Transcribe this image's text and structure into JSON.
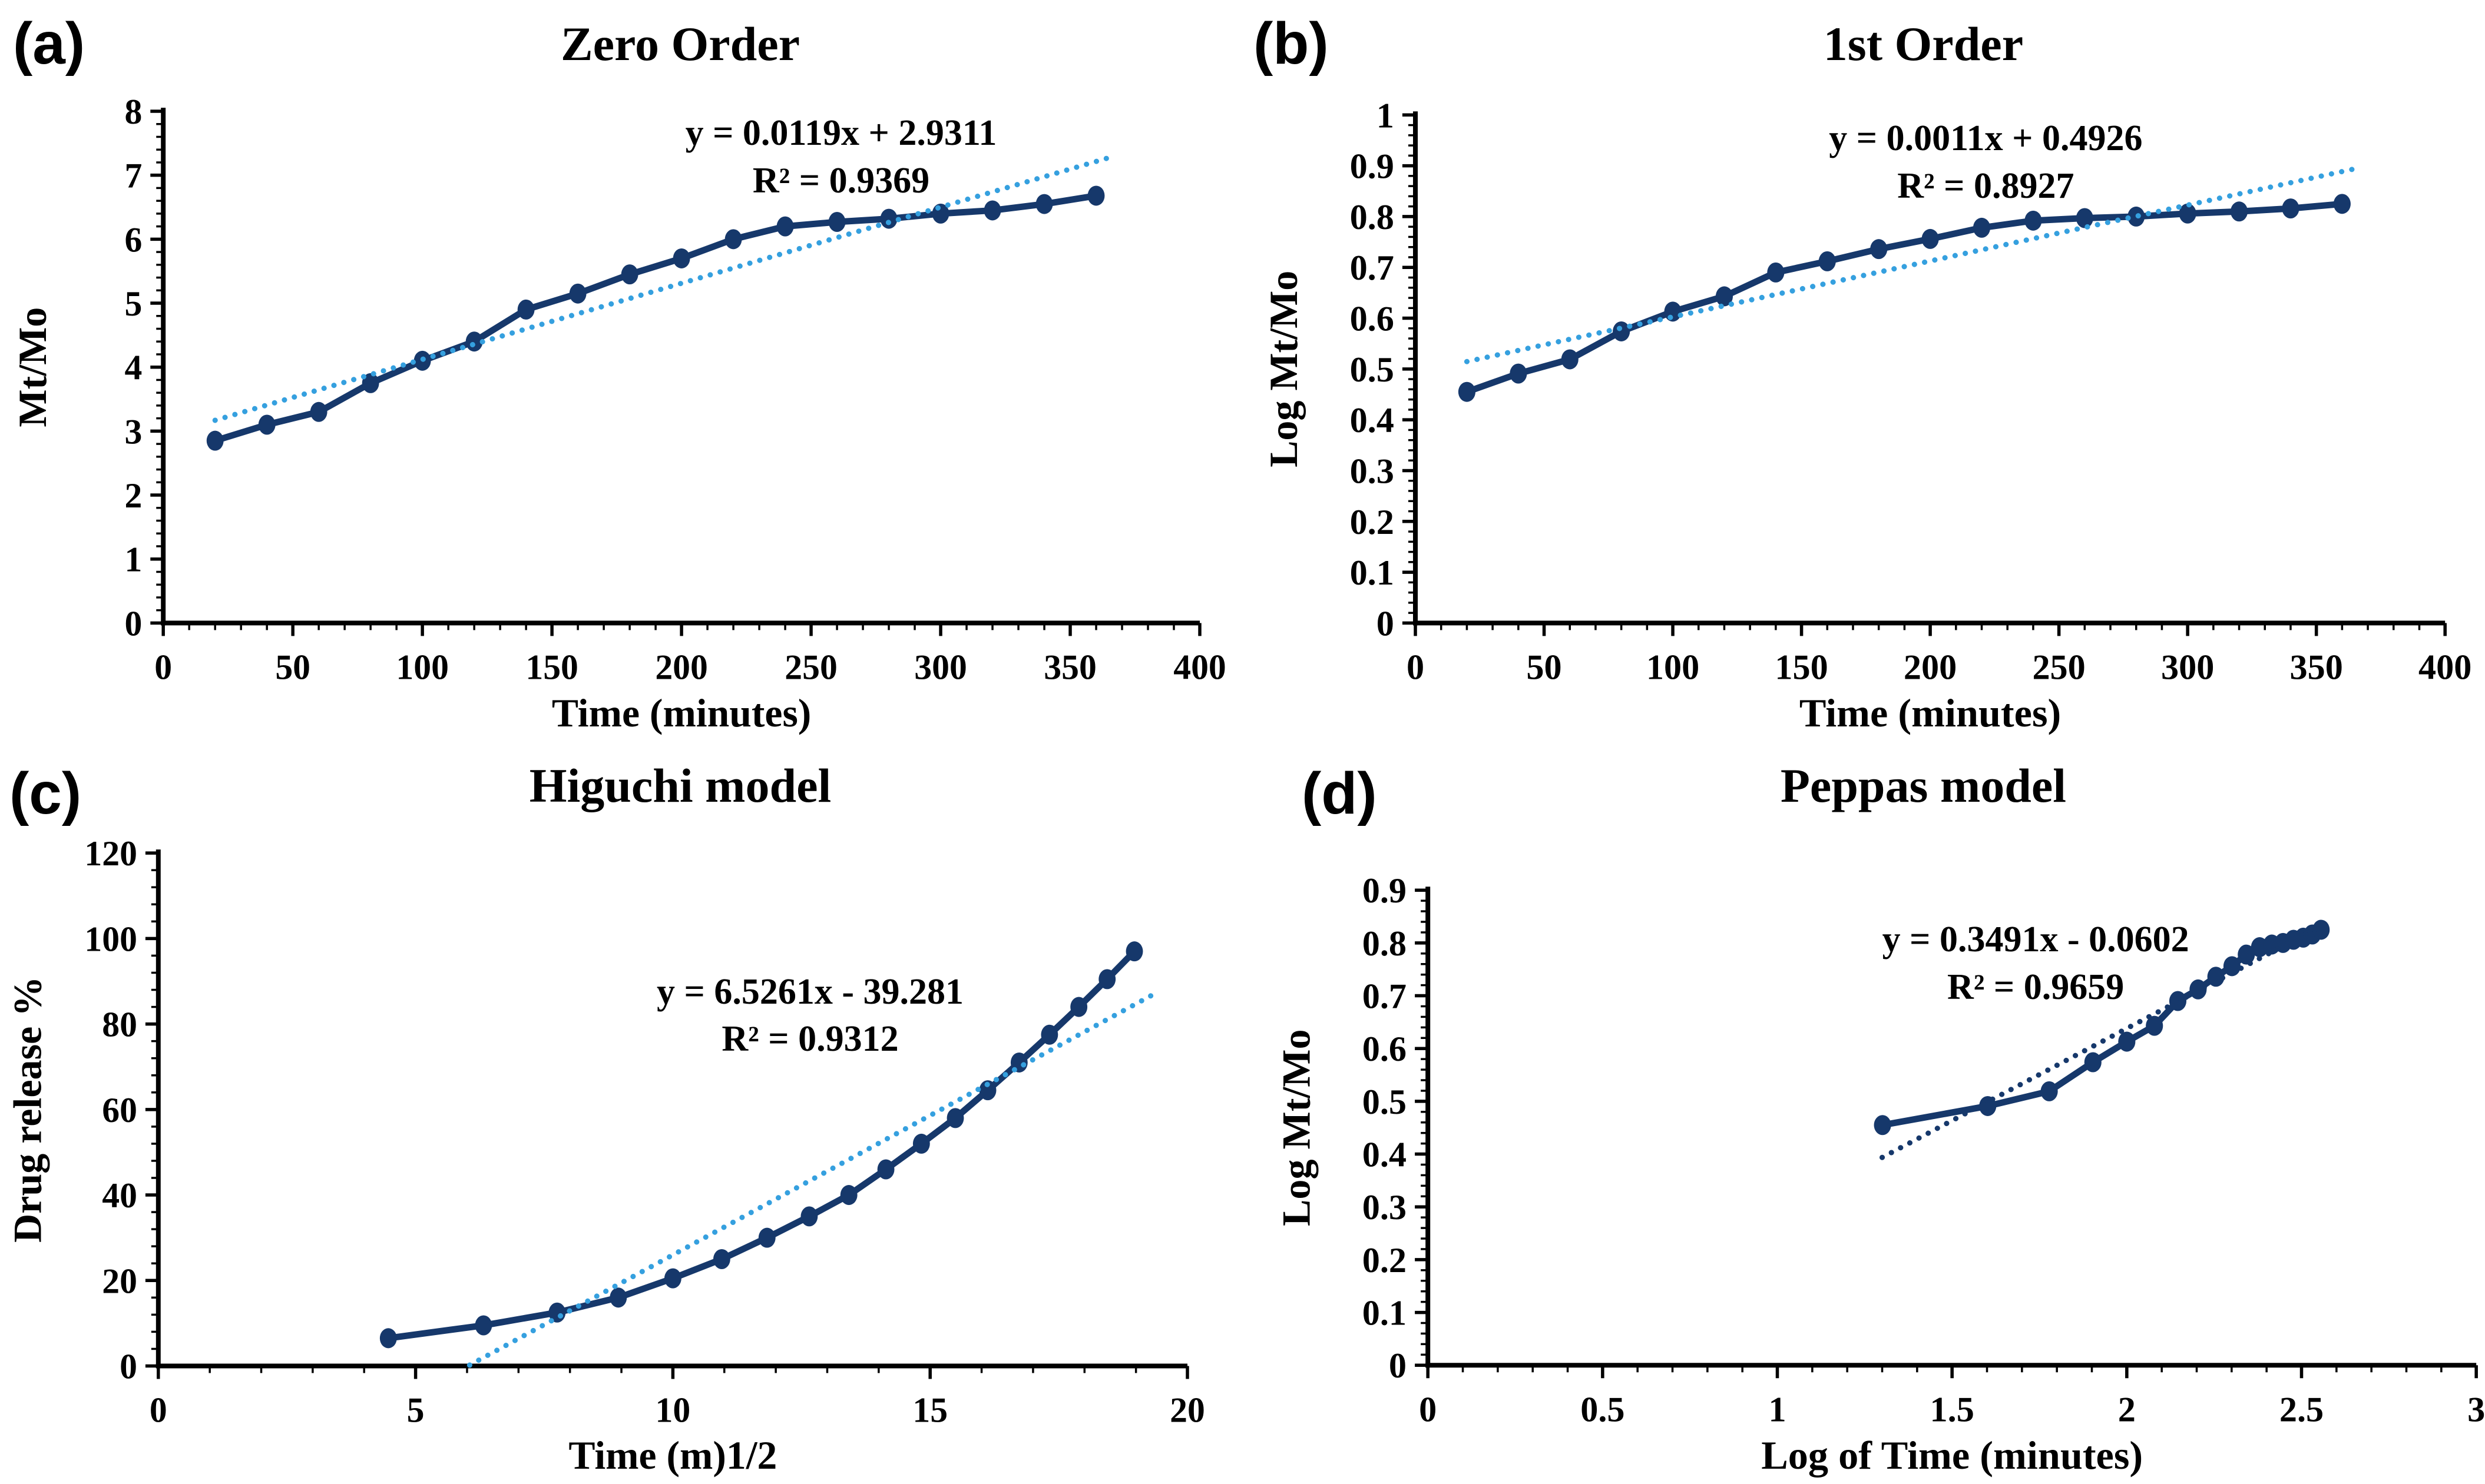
{
  "figure": {
    "background_color": "#ffffff",
    "axis_color": "#000000",
    "series_color": "#16386B",
    "trendline_color_light": "#35A0DF"
  },
  "chart_data": [
    {
      "type": "line",
      "panel_label": "(a)",
      "title": "Zero Order",
      "xlabel": "Time (minutes)",
      "ylabel": "Mt/Mo",
      "xlim": [
        0,
        400
      ],
      "ylim": [
        0,
        8
      ],
      "xticks": [
        0,
        50,
        100,
        150,
        200,
        250,
        300,
        350,
        400
      ],
      "xtick_labels": [
        "0",
        "50",
        "100",
        "150",
        "200",
        "250",
        "300",
        "350",
        "400"
      ],
      "yticks": [
        0,
        1,
        2,
        3,
        4,
        5,
        6,
        7,
        8
      ],
      "ytick_labels": [
        "0",
        "1",
        "2",
        "3",
        "4",
        "5",
        "6",
        "7",
        "8"
      ],
      "x_minor_step": 10,
      "y_minor_step": 0.2,
      "grid": false,
      "legend": "none",
      "x": [
        20,
        40,
        60,
        80,
        100,
        120,
        140,
        160,
        180,
        200,
        220,
        240,
        260,
        280,
        300,
        320,
        340,
        360
      ],
      "y": [
        2.85,
        3.1,
        3.3,
        3.75,
        4.1,
        4.4,
        4.9,
        5.15,
        5.45,
        5.7,
        6.0,
        6.2,
        6.27,
        6.32,
        6.4,
        6.45,
        6.55,
        6.68
      ],
      "series_color": "#16386B",
      "trendline": {
        "equation": "y = 0.0119x + 2.9311",
        "r_squared": "R² = 0.9369",
        "slope": 0.0119,
        "intercept": 2.9311,
        "x_start": 20,
        "x_end": 365,
        "color": "#35A0DF",
        "style": "dotted"
      }
    },
    {
      "type": "line",
      "panel_label": "(b)",
      "title": "1st Order",
      "xlabel": "Time (minutes)",
      "ylabel": "Log Mt/Mo",
      "xlim": [
        0,
        400
      ],
      "ylim": [
        0,
        1
      ],
      "xticks": [
        0,
        50,
        100,
        150,
        200,
        250,
        300,
        350,
        400
      ],
      "xtick_labels": [
        "0",
        "50",
        "100",
        "150",
        "200",
        "250",
        "300",
        "350",
        "400"
      ],
      "yticks": [
        0,
        0.1,
        0.2,
        0.3,
        0.4,
        0.5,
        0.6,
        0.7,
        0.8,
        0.9,
        1
      ],
      "ytick_labels": [
        "0",
        "0.1",
        "0.2",
        "0.3",
        "0.4",
        "0.5",
        "0.6",
        "0.7",
        "0.8",
        "0.9",
        "1"
      ],
      "x_minor_step": 10,
      "y_minor_step": 0.02,
      "grid": false,
      "legend": "none",
      "x": [
        20,
        40,
        60,
        80,
        100,
        120,
        140,
        160,
        180,
        200,
        220,
        240,
        260,
        280,
        300,
        320,
        340,
        360
      ],
      "y": [
        0.455,
        0.491,
        0.519,
        0.574,
        0.613,
        0.643,
        0.69,
        0.712,
        0.736,
        0.756,
        0.778,
        0.792,
        0.797,
        0.8,
        0.806,
        0.81,
        0.816,
        0.825
      ],
      "series_color": "#16386B",
      "trendline": {
        "equation": "y = 0.0011x + 0.4926",
        "r_squared": "R² = 0.8927",
        "slope": 0.0011,
        "intercept": 0.4926,
        "x_start": 20,
        "x_end": 365,
        "color": "#35A0DF",
        "style": "dotted"
      }
    },
    {
      "type": "line",
      "panel_label": "(c)",
      "title": "Higuchi model",
      "xlabel": "Time (m)1/2",
      "ylabel": "Drug release %",
      "xlim": [
        0,
        20
      ],
      "ylim": [
        0,
        120
      ],
      "xticks": [
        0,
        5,
        10,
        15,
        20
      ],
      "xtick_labels": [
        "0",
        "5",
        "10",
        "15",
        "20"
      ],
      "yticks": [
        0,
        20,
        40,
        60,
        80,
        100,
        120
      ],
      "ytick_labels": [
        "0",
        "20",
        "40",
        "60",
        "80",
        "100",
        "120"
      ],
      "x_minor_step": 1,
      "y_minor_step": 4,
      "grid": false,
      "legend": "none",
      "x": [
        4.47,
        6.32,
        7.75,
        8.94,
        10.0,
        10.95,
        11.83,
        12.65,
        13.42,
        14.14,
        14.83,
        15.49,
        16.12,
        16.73,
        17.32,
        17.89,
        18.44,
        18.97
      ],
      "y": [
        6.5,
        9.5,
        12.5,
        16,
        20.5,
        25,
        30,
        35,
        40,
        46,
        52,
        58,
        64.5,
        71,
        77.5,
        84,
        90.5,
        97
      ],
      "series_color": "#16386B",
      "trendline": {
        "equation": "y = 6.5261x - 39.281",
        "r_squared": "R² = 0.9312",
        "slope": 6.5261,
        "intercept": -39.281,
        "x_start": 6.05,
        "x_end": 19.3,
        "color": "#35A0DF",
        "style": "dotted"
      }
    },
    {
      "type": "line",
      "panel_label": "(d)",
      "title": "Peppas model",
      "xlabel": "Log of Time (minutes)",
      "ylabel": "Log Mt/Mo",
      "xlim": [
        0,
        3
      ],
      "ylim": [
        0,
        0.9
      ],
      "xticks": [
        0,
        0.5,
        1,
        1.5,
        2,
        2.5,
        3
      ],
      "xtick_labels": [
        "0",
        "0.5",
        "1",
        "1.5",
        "2",
        "2.5",
        "3"
      ],
      "yticks": [
        0,
        0.1,
        0.2,
        0.3,
        0.4,
        0.5,
        0.6,
        0.7,
        0.8,
        0.9
      ],
      "ytick_labels": [
        "0",
        "0.1",
        "0.2",
        "0.3",
        "0.4",
        "0.5",
        "0.6",
        "0.7",
        "0.8",
        "0.9"
      ],
      "x_minor_step": 0.1,
      "y_minor_step": 0.02,
      "grid": false,
      "legend": "none",
      "x": [
        1.301,
        1.602,
        1.778,
        1.903,
        2.0,
        2.079,
        2.146,
        2.204,
        2.255,
        2.301,
        2.342,
        2.38,
        2.415,
        2.447,
        2.477,
        2.505,
        2.531,
        2.556
      ],
      "y": [
        0.455,
        0.491,
        0.519,
        0.574,
        0.613,
        0.643,
        0.69,
        0.712,
        0.736,
        0.756,
        0.778,
        0.792,
        0.797,
        0.8,
        0.806,
        0.81,
        0.816,
        0.825
      ],
      "series_color": "#16386B",
      "trendline": {
        "equation": "y = 0.3491x - 0.0602",
        "r_squared": "R² = 0.9659",
        "slope": 0.3491,
        "intercept": -0.0602,
        "x_start": 1.3,
        "x_end": 2.56,
        "color": "#16386B",
        "style": "dotted"
      }
    }
  ]
}
